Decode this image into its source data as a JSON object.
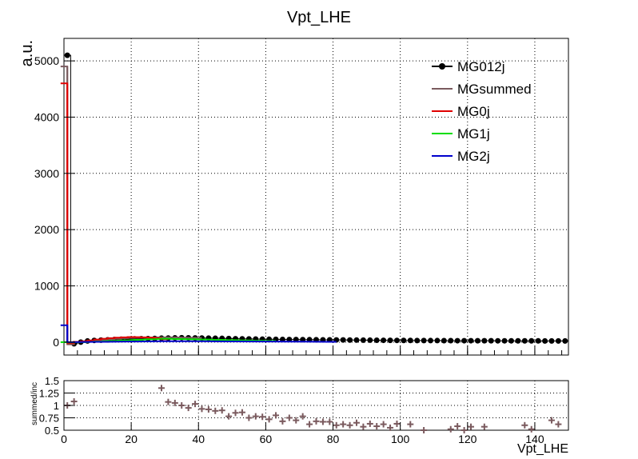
{
  "title": "Vpt_LHE",
  "chart_data": [
    {
      "type": "line",
      "title": "Vpt_LHE",
      "xlabel": "",
      "ylabel": "a.u.",
      "xlim": [
        0,
        150
      ],
      "ylim": [
        -230,
        5400
      ],
      "grid": true,
      "legend_position": "top-right",
      "x_ticks": [
        "0",
        "20",
        "40",
        "60",
        "80",
        "100",
        "120",
        "140"
      ],
      "y_ticks": [
        "0",
        "1000",
        "2000",
        "3000",
        "4000",
        "5000"
      ],
      "legend": [
        {
          "name": "MG012j",
          "color": "#000000"
        },
        {
          "name": "MGsummed",
          "color": "#7a5a5e"
        },
        {
          "name": "MG0j",
          "color": "#e00000"
        },
        {
          "name": "MG1j",
          "color": "#00dd00"
        },
        {
          "name": "MG2j",
          "color": "#0000cc"
        }
      ],
      "series": [
        {
          "name": "MG012j",
          "color": "#000000",
          "x": [
            1,
            3,
            5,
            7,
            9,
            11,
            13,
            15,
            17,
            19,
            21,
            23,
            25,
            27,
            29,
            31,
            33,
            35,
            37,
            39,
            41,
            43,
            45,
            47,
            49,
            51,
            53,
            55,
            57,
            59,
            61,
            63,
            65,
            67,
            69,
            71,
            73,
            75,
            77,
            79,
            81,
            83,
            85,
            87,
            89,
            91,
            93,
            95,
            97,
            99,
            101,
            103,
            105,
            107,
            109,
            111,
            113,
            115,
            117,
            119,
            121,
            123,
            125,
            127,
            129,
            131,
            133,
            135,
            137,
            139,
            141,
            143,
            145,
            147,
            149
          ],
          "y": [
            5100,
            -30,
            0,
            20,
            30,
            35,
            40,
            45,
            50,
            55,
            58,
            60,
            62,
            65,
            70,
            72,
            75,
            78,
            76,
            74,
            72,
            70,
            68,
            66,
            64,
            60,
            58,
            56,
            54,
            52,
            50,
            49,
            47,
            46,
            45,
            44,
            43,
            42,
            41,
            40,
            39,
            38,
            37,
            36,
            35,
            34,
            33,
            32,
            31,
            30,
            29,
            29,
            28,
            28,
            27,
            27,
            26,
            26,
            25,
            25,
            25,
            24,
            24,
            24,
            23,
            23,
            23,
            22,
            22,
            22,
            22,
            21,
            21,
            21,
            21
          ]
        },
        {
          "name": "MGsummed",
          "color": "#7a5a5e",
          "x": [
            0,
            2,
            4,
            6,
            8,
            10,
            12,
            14,
            16,
            18,
            20,
            22,
            24,
            26,
            28,
            30,
            32,
            34,
            36,
            38,
            40
          ],
          "y": [
            4900,
            -40,
            0,
            10,
            20,
            30,
            40,
            50,
            60,
            70,
            75,
            78,
            80,
            82,
            84,
            85,
            84,
            82,
            80,
            78,
            75
          ]
        },
        {
          "name": "MG0j",
          "color": "#e00000",
          "x": [
            0,
            2,
            4,
            6,
            8,
            10,
            12,
            14,
            16,
            18,
            20,
            22,
            24,
            26,
            28,
            30
          ],
          "y": [
            4600,
            -20,
            5,
            15,
            30,
            45,
            60,
            70,
            80,
            85,
            90,
            88,
            85,
            80,
            70,
            50
          ]
        },
        {
          "name": "MG1j",
          "color": "#00dd00",
          "x": [
            0,
            2,
            6,
            10,
            14,
            18,
            22,
            26,
            30,
            34,
            38,
            42,
            46,
            50,
            54,
            58,
            62
          ],
          "y": [
            0,
            -5,
            0,
            10,
            20,
            30,
            40,
            50,
            60,
            55,
            50,
            45,
            40,
            35,
            30,
            25,
            20
          ]
        },
        {
          "name": "MG2j",
          "color": "#0000cc",
          "x": [
            0,
            2,
            10,
            20,
            30,
            40,
            50,
            60,
            70,
            80
          ],
          "y": [
            300,
            0,
            5,
            10,
            15,
            15,
            12,
            10,
            8,
            5
          ]
        }
      ]
    },
    {
      "type": "scatter",
      "title": "",
      "xlabel": "Vpt_LHE",
      "ylabel": "summed/inc",
      "xlim": [
        0,
        150
      ],
      "ylim": [
        0.5,
        1.5
      ],
      "grid": true,
      "x_ticks": [
        "0",
        "20",
        "40",
        "60",
        "80",
        "100",
        "120",
        "140"
      ],
      "y_ticks": [
        "0.5",
        "0.75",
        "1",
        "1.25",
        "1.5"
      ],
      "series": [
        {
          "name": "",
          "color": "#7a5a5e",
          "x": [
            1,
            3,
            29,
            31,
            33,
            35,
            37,
            39,
            41,
            43,
            45,
            47,
            49,
            51,
            53,
            55,
            57,
            59,
            61,
            63,
            65,
            67,
            69,
            71,
            73,
            75,
            77,
            79,
            81,
            83,
            85,
            87,
            89,
            91,
            93,
            95,
            97,
            99,
            103,
            107,
            115,
            117,
            119,
            121,
            125,
            137,
            139,
            145,
            147
          ],
          "y": [
            1.0,
            1.08,
            1.35,
            1.07,
            1.05,
            1.0,
            0.95,
            1.03,
            0.93,
            0.92,
            0.89,
            0.9,
            0.78,
            0.85,
            0.86,
            0.75,
            0.78,
            0.77,
            0.72,
            0.8,
            0.68,
            0.75,
            0.7,
            0.78,
            0.62,
            0.68,
            0.67,
            0.67,
            0.6,
            0.62,
            0.6,
            0.65,
            0.57,
            0.63,
            0.58,
            0.62,
            0.55,
            0.63,
            0.62,
            0.5,
            0.52,
            0.58,
            0.5,
            0.57,
            0.57,
            0.6,
            0.52,
            0.7,
            0.62
          ]
        }
      ]
    }
  ]
}
